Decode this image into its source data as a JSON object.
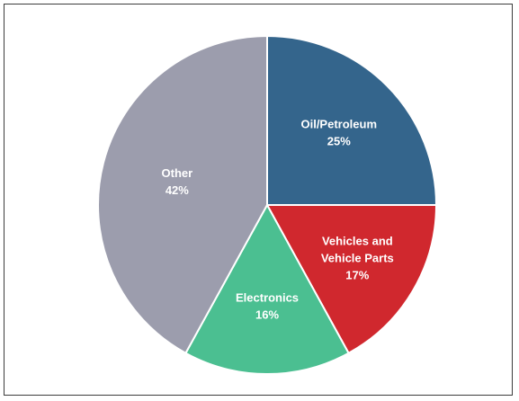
{
  "chart_data": {
    "type": "pie",
    "title": "",
    "slices": [
      {
        "label": "Oil/Petroleum",
        "label_lines": [
          "Oil/Petroleum"
        ],
        "value": 25,
        "value_label": "25%",
        "color": "#34658c"
      },
      {
        "label": "Vehicles and Vehicle Parts",
        "label_lines": [
          "Vehicles and",
          "Vehicle Parts"
        ],
        "value": 17,
        "value_label": "17%",
        "color": "#d0282e"
      },
      {
        "label": "Electronics",
        "label_lines": [
          "Electronics"
        ],
        "value": 16,
        "value_label": "16%",
        "color": "#4bbf91"
      },
      {
        "label": "Other",
        "label_lines": [
          "Other"
        ],
        "value": 42,
        "value_label": "42%",
        "color": "#9c9dad"
      }
    ],
    "start_angle": "12 o'clock",
    "direction": "clockwise",
    "legend": "none",
    "labels": "inside slices, white bold"
  }
}
